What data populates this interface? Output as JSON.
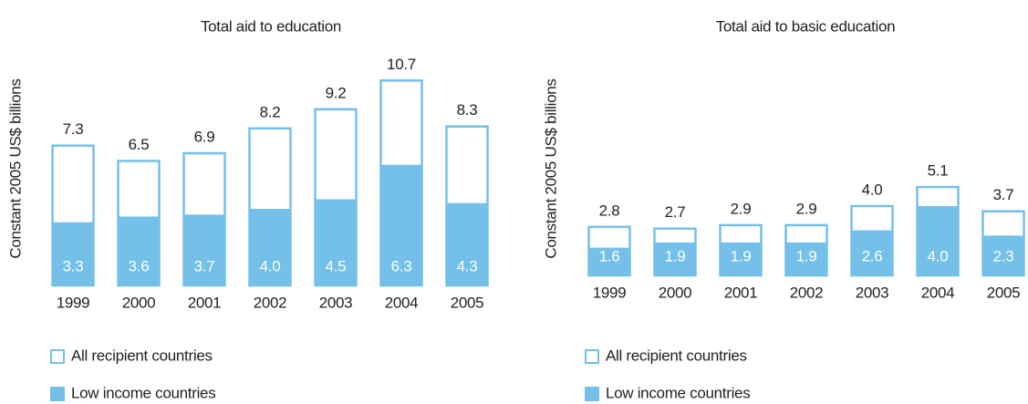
{
  "chart_data": [
    {
      "type": "bar",
      "title": "Total aid to education",
      "y_label": "Constant 2005 US$ billions",
      "categories": [
        "1999",
        "2000",
        "2001",
        "2002",
        "2003",
        "2004",
        "2005"
      ],
      "ylim": [
        0,
        12
      ],
      "series": [
        {
          "name": "All recipient countries",
          "color": "#74c0e8",
          "style": "outline",
          "values": [
            7.3,
            6.5,
            6.9,
            8.2,
            9.2,
            10.7,
            8.3
          ],
          "value_labels": [
            "7.3",
            "6.5",
            "6.9",
            "8.2",
            "9.2",
            "10.7",
            "8.3"
          ]
        },
        {
          "name": "Low income countries",
          "color": "#74c0e8",
          "style": "fill",
          "values": [
            3.3,
            3.6,
            3.7,
            4.0,
            4.5,
            6.3,
            4.3
          ],
          "value_labels": [
            "3.3",
            "3.6",
            "3.7",
            "4.0",
            "4.5",
            "6.3",
            "4.3"
          ]
        }
      ]
    },
    {
      "type": "bar",
      "title": "Total aid to basic education",
      "y_label": "Constant 2005 US$ billions",
      "categories": [
        "1999",
        "2000",
        "2001",
        "2002",
        "2003",
        "2004",
        "2005"
      ],
      "ylim": [
        0,
        6
      ],
      "series": [
        {
          "name": "All recipient countries",
          "color": "#74c0e8",
          "style": "outline",
          "values": [
            2.8,
            2.7,
            2.9,
            2.9,
            4.0,
            5.1,
            3.7
          ],
          "value_labels": [
            "2.8",
            "2.7",
            "2.9",
            "2.9",
            "4.0",
            "5.1",
            "3.7"
          ]
        },
        {
          "name": "Low income countries",
          "color": "#74c0e8",
          "style": "fill",
          "values": [
            1.6,
            1.9,
            1.9,
            1.9,
            2.6,
            4.0,
            2.3
          ],
          "value_labels": [
            "1.6",
            "1.9",
            "1.9",
            "1.9",
            "2.6",
            "4.0",
            "2.3"
          ]
        }
      ]
    }
  ]
}
